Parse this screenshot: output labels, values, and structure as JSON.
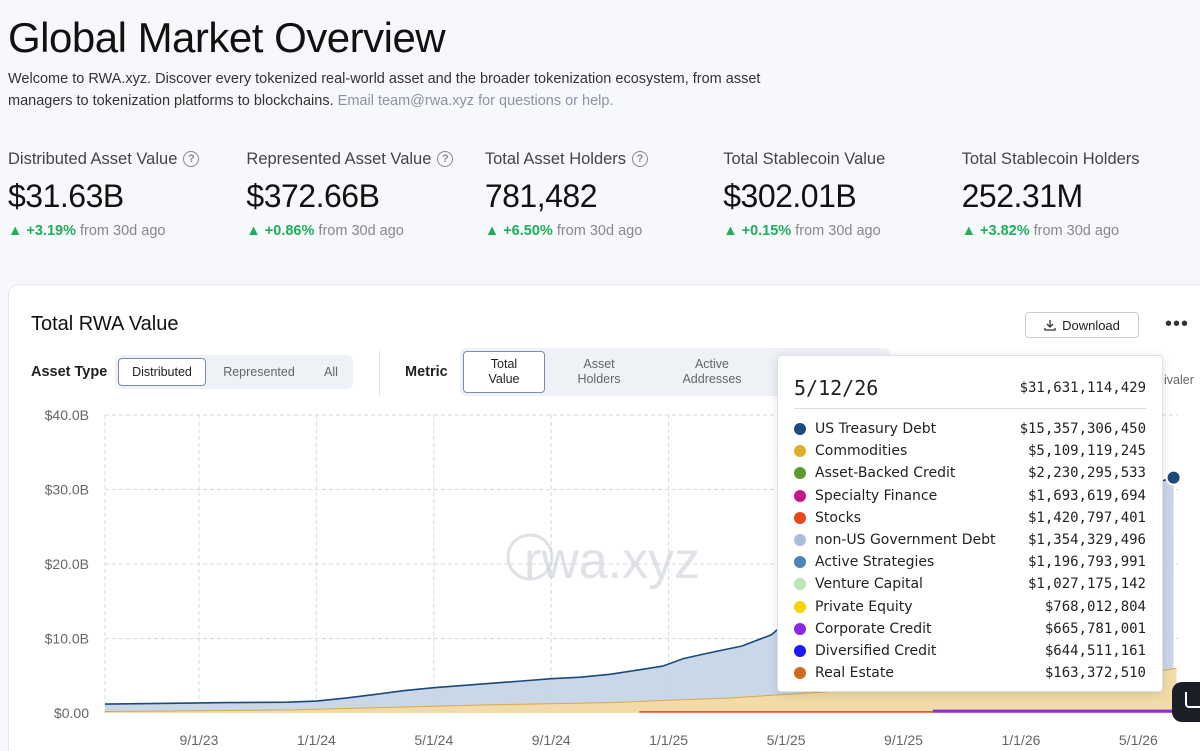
{
  "header": {
    "title": "Global Market Overview",
    "intro": "Welcome to RWA.xyz. Discover every tokenized real-world asset and the broader tokenization ecosystem, from asset managers to tokenization platforms to blockchains.",
    "email_note": "Email team@rwa.xyz for questions or help."
  },
  "stats": [
    {
      "label": "Distributed Asset Value",
      "value": "$31.63B",
      "change": "+3.19%",
      "suffix": "from 30d ago",
      "has_help": true
    },
    {
      "label": "Represented Asset Value",
      "value": "$372.66B",
      "change": "+0.86%",
      "suffix": "from 30d ago",
      "has_help": true
    },
    {
      "label": "Total Asset Holders",
      "value": "781,482",
      "change": "+6.50%",
      "suffix": "from 30d ago",
      "has_help": true
    },
    {
      "label": "Total Stablecoin Value",
      "value": "$302.01B",
      "change": "+0.15%",
      "suffix": "from 30d ago",
      "has_help": false
    },
    {
      "label": "Total Stablecoin Holders",
      "value": "252.31M",
      "change": "+3.82%",
      "suffix": "from 30d ago",
      "has_help": false
    }
  ],
  "card": {
    "title": "Total RWA Value",
    "download_label": "Download",
    "asset_type_label": "Asset Type",
    "asset_type_options": [
      "Distributed",
      "Represented",
      "All"
    ],
    "asset_type_selected": "Distributed",
    "metric_label": "Metric",
    "metric_options": [
      {
        "line1": "Total",
        "line2": "Value"
      },
      {
        "line1": "Asset",
        "line2": "Holders"
      },
      {
        "line1": "Active",
        "line2": "Addresses"
      }
    ],
    "metric_selected": "Total Value",
    "clipped_text": "ivaler"
  },
  "tooltip": {
    "date": "5/12/26",
    "total": "$31,631,114,429",
    "rows": [
      {
        "name": "US Treasury Debt",
        "value": "$15,357,306,450",
        "color": "#1c4a7a"
      },
      {
        "name": "Commodities",
        "value": "$5,109,119,245",
        "color": "#e0ac2b"
      },
      {
        "name": "Asset-Backed Credit",
        "value": "$2,230,295,533",
        "color": "#5f9a2a"
      },
      {
        "name": "Specialty Finance",
        "value": "$1,693,619,694",
        "color": "#c2178a"
      },
      {
        "name": "Stocks",
        "value": "$1,420,797,401",
        "color": "#e8461e"
      },
      {
        "name": "non-US Government Debt",
        "value": "$1,354,329,496",
        "color": "#a9bfdc"
      },
      {
        "name": "Active Strategies",
        "value": "$1,196,793,991",
        "color": "#4b86b8"
      },
      {
        "name": "Venture Capital",
        "value": "$1,027,175,142",
        "color": "#b6e6b4"
      },
      {
        "name": "Private Equity",
        "value": "$768,012,804",
        "color": "#f5d400"
      },
      {
        "name": "Corporate Credit",
        "value": "$665,781,001",
        "color": "#8a2be2"
      },
      {
        "name": "Diversified Credit",
        "value": "$644,511,161",
        "color": "#1a1aff"
      },
      {
        "name": "Real Estate",
        "value": "$163,372,510",
        "color": "#d2691e"
      }
    ]
  },
  "chart_data": {
    "type": "area",
    "title": "Total RWA Value",
    "watermark": "rwa.xyz",
    "ylim": [
      0,
      40
    ],
    "y_ticks": [
      "$0.00",
      "$10.0B",
      "$20.0B",
      "$30.0B",
      "$40.0B"
    ],
    "x_ticks": [
      "9/1/23",
      "1/1/24",
      "5/1/24",
      "9/1/24",
      "1/1/25",
      "5/1/25",
      "9/1/25",
      "1/1/26",
      "5/1/26"
    ],
    "x_ticks_months": [
      7,
      11,
      15,
      19,
      23,
      27,
      31,
      35,
      39
    ],
    "x_range_months": [
      3.8,
      40.35
    ],
    "x_months_note": "months counted from 1/1/23",
    "series": [
      {
        "name": "Other assets (stacked)",
        "color": "#f2dba8",
        "points": [
          [
            3.8,
            0.2
          ],
          [
            10,
            0.4
          ],
          [
            13,
            0.7
          ],
          [
            17,
            1.1
          ],
          [
            21,
            1.4
          ],
          [
            23,
            1.7
          ],
          [
            25,
            2.0
          ],
          [
            27,
            2.5
          ],
          [
            29,
            3.0
          ],
          [
            31,
            3.4
          ],
          [
            33,
            3.7
          ],
          [
            35,
            4.0
          ],
          [
            37,
            4.6
          ],
          [
            39,
            5.2
          ],
          [
            40.3,
            6.0
          ]
        ]
      },
      {
        "name": "Total (top of stack)",
        "color": "#1c4a7a",
        "points": [
          [
            3.8,
            1.2
          ],
          [
            6,
            1.3
          ],
          [
            8,
            1.4
          ],
          [
            10,
            1.45
          ],
          [
            11,
            1.6
          ],
          [
            12,
            2.0
          ],
          [
            13,
            2.5
          ],
          [
            14,
            3.0
          ],
          [
            15,
            3.4
          ],
          [
            16,
            3.7
          ],
          [
            17,
            4.0
          ],
          [
            18,
            4.3
          ],
          [
            19,
            4.6
          ],
          [
            20,
            4.8
          ],
          [
            21,
            5.2
          ],
          [
            22,
            5.8
          ],
          [
            22.8,
            6.3
          ],
          [
            23.5,
            7.3
          ],
          [
            24.3,
            8.0
          ],
          [
            25.5,
            9.0
          ],
          [
            26.5,
            10.5
          ],
          [
            27.3,
            13.2
          ],
          [
            28,
            14.5
          ],
          [
            30,
            17.5
          ],
          [
            32,
            20.5
          ],
          [
            34,
            24.0
          ],
          [
            36,
            27.5
          ],
          [
            38,
            30.0
          ],
          [
            39.5,
            30.8
          ],
          [
            40.2,
            31.6
          ]
        ]
      }
    ],
    "hover_point": {
      "x": "5/12/26",
      "y": 31.63
    }
  }
}
